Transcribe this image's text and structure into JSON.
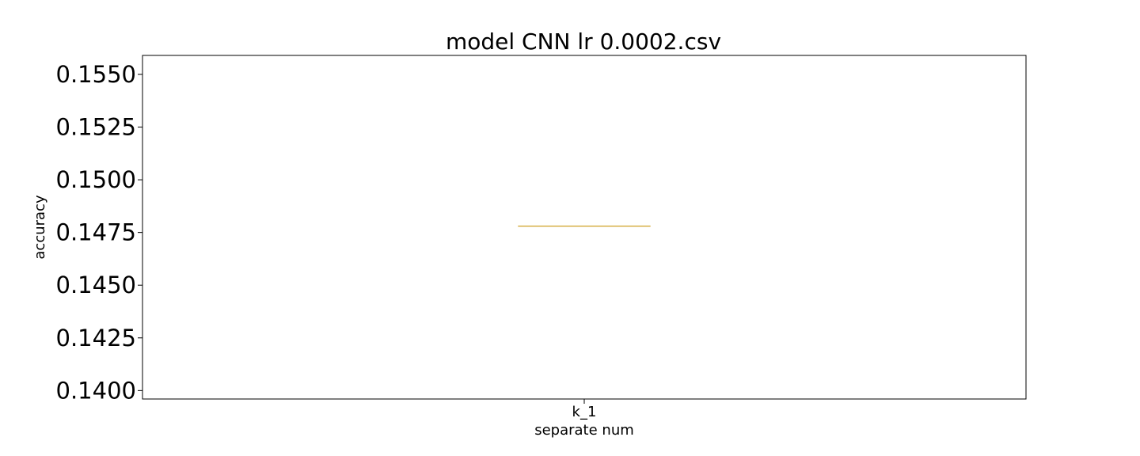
{
  "chart_data": {
    "type": "box",
    "title": "model CNN lr 0.0002.csv",
    "xlabel": "separate num",
    "ylabel": "accuracy",
    "categories": [
      "k_1"
    ],
    "series": [
      {
        "values": [
          0.1478
        ],
        "median": 0.1478,
        "q1": 0.1478,
        "q3": 0.1478,
        "whisker_low": 0.1478,
        "whisker_high": 0.1478
      }
    ],
    "ylim": [
      0.1396,
      0.1559
    ],
    "yticks": [
      0.14,
      0.1425,
      0.145,
      0.1475,
      0.15,
      0.1525,
      0.155
    ],
    "ytick_labels": [
      "0.1400",
      "0.1425",
      "0.1450",
      "0.1475",
      "0.1500",
      "0.1525",
      "0.1550"
    ],
    "grid": false,
    "colors": {
      "median": "#c8960a",
      "axes": "#000000"
    }
  }
}
